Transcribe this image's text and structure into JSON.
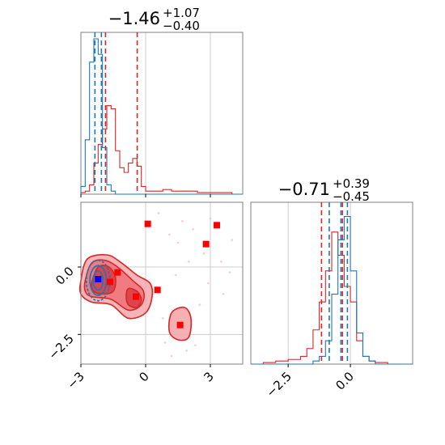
{
  "chart_data": {
    "type": "corner",
    "parameters": [
      "p1",
      "p2"
    ],
    "series_colors": {
      "blue": "#1f77b4",
      "red": "#d62728"
    },
    "p1": {
      "title_value": "−1.46",
      "title_plus": "+1.07",
      "title_minus": "−0.40",
      "range": [
        -3,
        4.5
      ],
      "ticks": [
        -3,
        0,
        3
      ],
      "tick_labels": [
        "−3",
        "0",
        "3"
      ],
      "quantiles_red": [
        -1.86,
        -1.46,
        -0.39
      ],
      "quantiles_blue": [
        -2.35,
        -2.2,
        -2.05
      ],
      "hist_bins": [
        -3.0,
        -2.8,
        -2.6,
        -2.4,
        -2.2,
        -2.0,
        -1.8,
        -1.6,
        -1.4,
        -1.2,
        -1.0,
        -0.8,
        -0.6,
        -0.4,
        -0.2,
        0.0,
        0.4,
        0.8,
        1.2,
        1.6,
        2.0,
        2.4,
        2.8,
        3.2,
        3.6,
        4.0,
        4.5
      ],
      "hist_blue": [
        0.05,
        0.35,
        0.85,
        1.0,
        0.9,
        0.3,
        0.06,
        0.02,
        0.0,
        0.0,
        0.0,
        0.0,
        0.0,
        0.0,
        0.0,
        0.0,
        0.0,
        0.0,
        0.0,
        0.0,
        0.0,
        0.0,
        0.0,
        0.0,
        0.0,
        0.0
      ],
      "hist_red": [
        0.01,
        0.02,
        0.06,
        0.2,
        0.32,
        0.42,
        0.57,
        0.55,
        0.28,
        0.17,
        0.14,
        0.2,
        0.23,
        0.18,
        0.05,
        0.02,
        0.02,
        0.03,
        0.02,
        0.02,
        0.02,
        0.01,
        0.01,
        0.01,
        0.01,
        0.0
      ]
    },
    "p2": {
      "title_value": "−0.71",
      "title_plus": "+0.39",
      "title_minus": "−0.45",
      "range": [
        -4.0,
        2.5
      ],
      "ticks": [
        -2.5,
        0.0
      ],
      "tick_labels": [
        "−2.5",
        "0.0"
      ],
      "quantiles_red": [
        -1.16,
        -0.71,
        -0.32
      ],
      "quantiles_blue": [
        -0.85,
        -0.38,
        -0.12
      ],
      "hist_bins": [
        -4.0,
        -3.5,
        -3.0,
        -2.5,
        -2.0,
        -1.75,
        -1.5,
        -1.25,
        -1.0,
        -0.75,
        -0.5,
        -0.25,
        0.0,
        0.25,
        0.5,
        0.75,
        1.0,
        1.5,
        2.0,
        2.5
      ],
      "hist_blue": [
        0.0,
        0.0,
        0.0,
        0.0,
        0.0,
        0.0,
        0.02,
        0.05,
        0.15,
        0.45,
        0.8,
        0.95,
        0.6,
        0.2,
        0.05,
        0.02,
        0.0,
        0.0,
        0.0
      ],
      "hist_red": [
        0.0,
        0.01,
        0.02,
        0.03,
        0.05,
        0.1,
        0.22,
        0.4,
        0.6,
        0.85,
        0.7,
        0.5,
        0.4,
        0.15,
        0.05,
        0.02,
        0.01,
        0.0,
        0.0
      ]
    },
    "joint": {
      "xlim": [
        -3,
        4.5
      ],
      "ylim": [
        -3.6,
        2.4
      ],
      "blue_mean": [
        -2.2,
        -0.45
      ],
      "blue_contours": [
        {
          "cx": -2.2,
          "cy": -0.5,
          "rx": 0.55,
          "ry": 0.75
        },
        {
          "cx": -2.2,
          "cy": -0.5,
          "rx": 0.38,
          "ry": 0.55
        },
        {
          "cx": -2.2,
          "cy": -0.5,
          "rx": 0.22,
          "ry": 0.35
        }
      ],
      "red_contours_outer": [
        [
          -3.0,
          -0.5
        ],
        [
          -2.7,
          0.3
        ],
        [
          -1.8,
          0.45
        ],
        [
          -1.2,
          0.2
        ],
        [
          -0.4,
          -0.3
        ],
        [
          0.2,
          -0.6
        ],
        [
          0.3,
          -1.1
        ],
        [
          0.0,
          -1.7
        ],
        [
          -0.8,
          -1.9
        ],
        [
          -1.6,
          -1.4
        ],
        [
          -2.5,
          -1.3
        ],
        [
          -3.0,
          -1.0
        ]
      ],
      "red_contours_mid": [
        [
          -2.8,
          -0.5
        ],
        [
          -2.5,
          0.15
        ],
        [
          -1.9,
          0.25
        ],
        [
          -1.3,
          0.0
        ],
        [
          -0.6,
          -0.5
        ],
        [
          -0.1,
          -0.9
        ],
        [
          -0.2,
          -1.4
        ],
        [
          -0.8,
          -1.6
        ],
        [
          -1.6,
          -1.2
        ],
        [
          -2.5,
          -1.1
        ],
        [
          -2.8,
          -0.9
        ]
      ],
      "red_contours_inner": [
        [
          -2.5,
          -0.6
        ],
        [
          -2.2,
          0.0
        ],
        [
          -1.7,
          0.0
        ],
        [
          -1.4,
          -0.4
        ],
        [
          -1.5,
          -0.9
        ],
        [
          -2.0,
          -1.0
        ],
        [
          -2.4,
          -0.9
        ]
      ],
      "red_inner2": [
        [
          -0.8,
          -0.8
        ],
        [
          -0.4,
          -0.9
        ],
        [
          -0.2,
          -1.2
        ],
        [
          -0.4,
          -1.5
        ],
        [
          -0.8,
          -1.4
        ],
        [
          -0.9,
          -1.1
        ]
      ],
      "red_island": [
        [
          1.2,
          -1.7
        ],
        [
          1.8,
          -1.5
        ],
        [
          2.1,
          -1.9
        ],
        [
          2.0,
          -2.6
        ],
        [
          1.5,
          -2.7
        ],
        [
          1.1,
          -2.4
        ]
      ],
      "red_squares": [
        [
          0.1,
          1.6
        ],
        [
          3.3,
          1.55
        ],
        [
          2.8,
          0.85
        ],
        [
          0.55,
          -0.85
        ],
        [
          -1.3,
          -0.2
        ],
        [
          -1.65,
          -0.55
        ],
        [
          1.6,
          -2.15
        ],
        [
          -0.45,
          -1.1
        ]
      ],
      "blue_squares": [
        [
          -2.2,
          -0.45
        ]
      ]
    }
  }
}
